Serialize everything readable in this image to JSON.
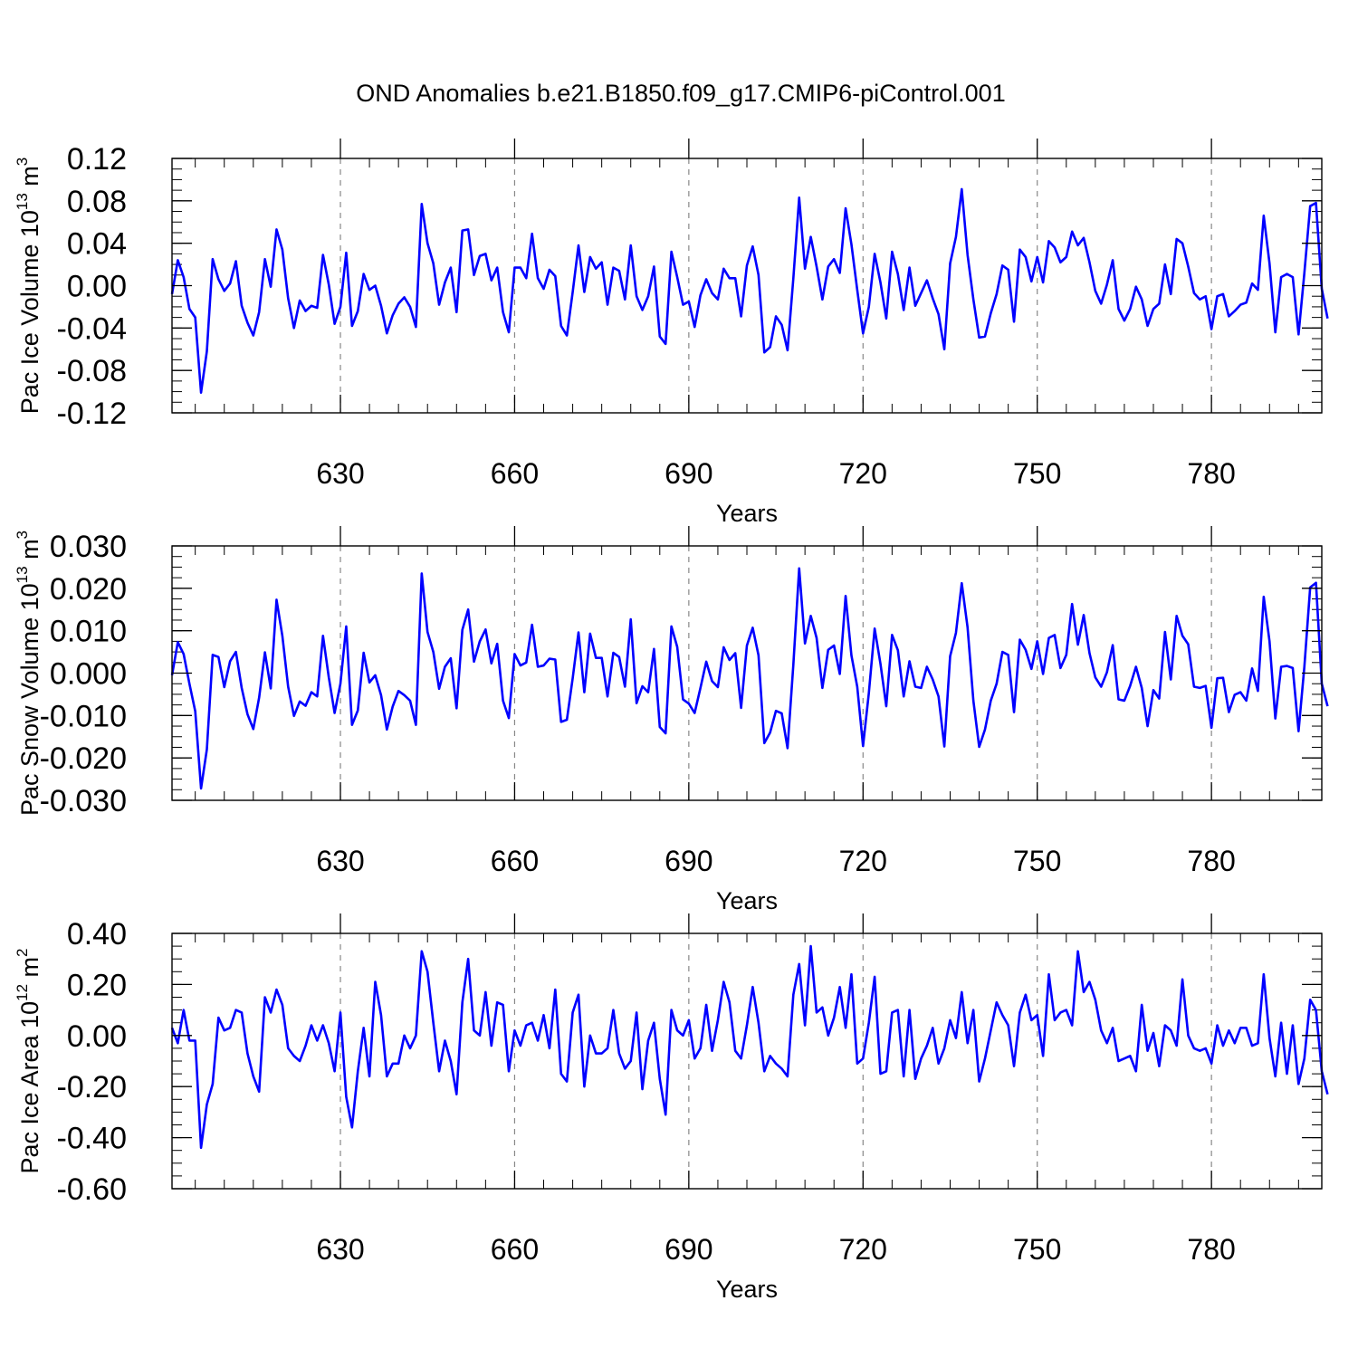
{
  "title": "OND Anomalies b.e21.B1850.f09_g17.CMIP6-piControl.001",
  "line_color": "#0000ff",
  "chart_data": [
    {
      "type": "line",
      "xlabel": "Years",
      "ylabel_main": "Pac Ice Volume 10",
      "ylabel_exp": "13",
      "ylabel_unit": " m",
      "ylabel_unit_exp": "3",
      "xlim": [
        601,
        799
      ],
      "ylim": [
        -0.12,
        0.12
      ],
      "xticks": [
        630,
        660,
        690,
        720,
        750,
        780
      ],
      "xtick_labels": [
        "630",
        "660",
        "690",
        "720",
        "750",
        "780"
      ],
      "yticks": [
        -0.12,
        -0.08,
        -0.04,
        0.0,
        0.04,
        0.08,
        0.12
      ],
      "ytick_labels": [
        "-0.12",
        "-0.08",
        "-0.04",
        "0.00",
        "0.04",
        "0.08",
        "0.12"
      ],
      "yminor_step": 0.01,
      "x_start": 601,
      "values": [
        -0.008,
        0.024,
        0.008,
        -0.022,
        -0.03,
        -0.101,
        -0.062,
        0.025,
        0.006,
        -0.005,
        0.002,
        0.023,
        -0.019,
        -0.035,
        -0.047,
        -0.025,
        0.025,
        -0.001,
        0.053,
        0.034,
        -0.012,
        -0.04,
        -0.014,
        -0.024,
        -0.019,
        -0.021,
        0.029,
        0.001,
        -0.036,
        -0.02,
        0.031,
        -0.038,
        -0.024,
        0.011,
        -0.004,
        0.0,
        -0.019,
        -0.045,
        -0.028,
        -0.017,
        -0.011,
        -0.02,
        -0.039,
        0.077,
        0.04,
        0.021,
        -0.018,
        0.003,
        0.017,
        -0.025,
        0.052,
        0.053,
        0.01,
        0.028,
        0.03,
        0.005,
        0.017,
        -0.025,
        -0.044,
        0.017,
        0.017,
        0.007,
        0.049,
        0.007,
        -0.003,
        0.015,
        0.009,
        -0.038,
        -0.047,
        -0.006,
        0.038,
        -0.006,
        0.027,
        0.016,
        0.022,
        -0.018,
        0.017,
        0.014,
        -0.013,
        0.038,
        -0.01,
        -0.023,
        -0.01,
        0.018,
        -0.048,
        -0.055,
        0.032,
        0.008,
        -0.018,
        -0.015,
        -0.039,
        -0.009,
        0.006,
        -0.007,
        -0.013,
        0.016,
        0.007,
        0.007,
        -0.029,
        0.019,
        0.037,
        0.01,
        -0.063,
        -0.058,
        -0.029,
        -0.037,
        -0.061,
        0.007,
        0.083,
        0.016,
        0.046,
        0.018,
        -0.013,
        0.018,
        0.025,
        0.012,
        0.073,
        0.039,
        -0.004,
        -0.045,
        -0.02,
        0.03,
        0.003,
        -0.031,
        0.032,
        0.011,
        -0.023,
        0.017,
        -0.019,
        -0.007,
        0.005,
        -0.012,
        -0.027,
        -0.06,
        0.021,
        0.046,
        0.091,
        0.029,
        -0.013,
        -0.049,
        -0.048,
        -0.026,
        -0.008,
        0.019,
        0.015,
        -0.034,
        0.034,
        0.027,
        0.004,
        0.027,
        0.003,
        0.042,
        0.036,
        0.022,
        0.027,
        0.051,
        0.038,
        0.045,
        0.022,
        -0.005,
        -0.017,
        0.001,
        0.024,
        -0.022,
        -0.033,
        -0.022,
        -0.001,
        -0.013,
        -0.038,
        -0.022,
        -0.017,
        0.02,
        -0.008,
        0.044,
        0.04,
        0.018,
        -0.007,
        -0.013,
        -0.01,
        -0.041,
        -0.01,
        -0.008,
        -0.029,
        -0.024,
        -0.018,
        -0.016,
        0.002,
        -0.004,
        0.066,
        0.021,
        -0.044,
        0.008,
        0.011,
        0.008,
        -0.046,
        0.012,
        0.075,
        0.078,
        -0.003,
        -0.031
      ]
    },
    {
      "type": "line",
      "xlabel": "Years",
      "ylabel_main": "Pac Snow Volume 10",
      "ylabel_exp": "13",
      "ylabel_unit": " m",
      "ylabel_unit_exp": "3",
      "xlim": [
        601,
        799
      ],
      "ylim": [
        -0.03,
        0.03
      ],
      "xticks": [
        630,
        660,
        690,
        720,
        750,
        780
      ],
      "xtick_labels": [
        "630",
        "660",
        "690",
        "720",
        "750",
        "780"
      ],
      "yticks": [
        -0.03,
        -0.02,
        -0.01,
        0.0,
        0.01,
        0.02,
        0.03
      ],
      "ytick_labels": [
        "-0.030",
        "-0.020",
        "-0.010",
        "0.000",
        "0.010",
        "0.020",
        "0.030"
      ],
      "yminor_step": 0.0025,
      "x_start": 601,
      "values": [
        -0.0005,
        0.0073,
        0.0045,
        -0.0025,
        -0.009,
        -0.0272,
        -0.018,
        0.0043,
        0.0038,
        -0.0033,
        0.0028,
        0.005,
        -0.0035,
        -0.0097,
        -0.0132,
        -0.0058,
        0.0049,
        -0.0036,
        0.0173,
        0.0088,
        -0.0032,
        -0.0101,
        -0.0067,
        -0.0077,
        -0.0045,
        -0.0055,
        0.0088,
        -0.001,
        -0.0094,
        -0.0025,
        0.011,
        -0.0122,
        -0.0088,
        0.0048,
        -0.0022,
        -0.0005,
        -0.0052,
        -0.0133,
        -0.0079,
        -0.0042,
        -0.0052,
        -0.0065,
        -0.0122,
        0.0235,
        0.0097,
        0.005,
        -0.0037,
        0.0015,
        0.0035,
        -0.0083,
        0.0102,
        0.015,
        0.0027,
        0.0075,
        0.0103,
        0.0023,
        0.0069,
        -0.0065,
        -0.0106,
        0.0045,
        0.0018,
        0.0025,
        0.0114,
        0.0015,
        0.0018,
        0.0034,
        0.0032,
        -0.0115,
        -0.011,
        -0.0012,
        0.0096,
        -0.0045,
        0.0093,
        0.0036,
        0.0036,
        -0.0055,
        0.0048,
        0.0038,
        -0.0032,
        0.0127,
        -0.0071,
        -0.0031,
        -0.0045,
        0.0057,
        -0.0127,
        -0.0142,
        0.011,
        0.0062,
        -0.0062,
        -0.0072,
        -0.0094,
        -0.0035,
        0.0027,
        -0.0019,
        -0.0033,
        0.0061,
        0.0031,
        0.0047,
        -0.0082,
        0.0065,
        0.0107,
        0.0042,
        -0.0165,
        -0.014,
        -0.0089,
        -0.0095,
        -0.0177,
        0.002,
        0.0247,
        0.007,
        0.0135,
        0.0083,
        -0.0035,
        0.0055,
        0.0065,
        -0.0002,
        0.0182,
        0.0042,
        -0.0032,
        -0.0172,
        -0.0047,
        0.0105,
        0.0022,
        -0.0078,
        0.009,
        0.0054,
        -0.0055,
        0.0028,
        -0.0032,
        -0.0035,
        0.0015,
        -0.0015,
        -0.0055,
        -0.0173,
        0.004,
        0.0095,
        0.0212,
        0.0108,
        -0.0065,
        -0.0174,
        -0.0133,
        -0.0065,
        -0.0025,
        0.005,
        0.0043,
        -0.0092,
        0.0079,
        0.0055,
        0.001,
        0.0075,
        -0.0002,
        0.0083,
        0.009,
        0.0012,
        0.0043,
        0.0163,
        0.0067,
        0.0137,
        0.0047,
        -0.001,
        -0.0032,
        0.0002,
        0.0066,
        -0.0062,
        -0.0065,
        -0.003,
        0.0015,
        -0.0035,
        -0.0125,
        -0.004,
        -0.006,
        0.0097,
        -0.0015,
        0.0135,
        0.0088,
        0.0068,
        -0.0032,
        -0.0035,
        -0.003,
        -0.0129,
        -0.0012,
        -0.0011,
        -0.0092,
        -0.0051,
        -0.0045,
        -0.0065,
        0.0011,
        -0.0042,
        0.018,
        0.0075,
        -0.0107,
        0.0015,
        0.0017,
        0.0012,
        -0.0137,
        0.0015,
        0.0202,
        0.0213,
        -0.0025,
        -0.0078
      ]
    },
    {
      "type": "line",
      "xlabel": "Years",
      "ylabel_main": "Pac Ice Area 10",
      "ylabel_exp": "12",
      "ylabel_unit": " m",
      "ylabel_unit_exp": "2",
      "xlim": [
        601,
        799
      ],
      "ylim": [
        -0.6,
        0.4
      ],
      "xticks": [
        630,
        660,
        690,
        720,
        750,
        780
      ],
      "xtick_labels": [
        "630",
        "660",
        "690",
        "720",
        "750",
        "780"
      ],
      "yticks": [
        -0.6,
        -0.4,
        -0.2,
        0.0,
        0.2,
        0.4
      ],
      "ytick_labels": [
        "-0.60",
        "-0.40",
        "-0.20",
        "0.00",
        "0.20",
        "0.40"
      ],
      "yminor_step": 0.05,
      "x_start": 601,
      "values": [
        0.03,
        -0.03,
        0.1,
        -0.02,
        -0.02,
        -0.44,
        -0.27,
        -0.19,
        0.07,
        0.02,
        0.03,
        0.1,
        0.09,
        -0.07,
        -0.16,
        -0.22,
        0.15,
        0.09,
        0.18,
        0.12,
        -0.05,
        -0.08,
        -0.1,
        -0.04,
        0.04,
        -0.02,
        0.04,
        -0.03,
        -0.14,
        0.09,
        -0.24,
        -0.36,
        -0.14,
        0.03,
        -0.16,
        0.21,
        0.08,
        -0.16,
        -0.11,
        -0.11,
        0.0,
        -0.05,
        0.0,
        0.33,
        0.25,
        0.05,
        -0.14,
        -0.02,
        -0.1,
        -0.23,
        0.13,
        0.3,
        0.02,
        0.0,
        0.17,
        -0.04,
        0.13,
        0.12,
        -0.14,
        0.02,
        -0.04,
        0.04,
        0.05,
        -0.02,
        0.08,
        -0.05,
        0.18,
        -0.15,
        -0.18,
        0.09,
        0.16,
        -0.2,
        0.0,
        -0.07,
        -0.07,
        -0.05,
        0.1,
        -0.07,
        -0.13,
        -0.1,
        0.09,
        -0.21,
        -0.02,
        0.05,
        -0.17,
        -0.31,
        0.1,
        0.02,
        0.0,
        0.06,
        -0.09,
        -0.05,
        0.12,
        -0.06,
        0.06,
        0.21,
        0.13,
        -0.06,
        -0.09,
        0.04,
        0.19,
        0.05,
        -0.14,
        -0.08,
        -0.11,
        -0.13,
        -0.16,
        0.16,
        0.28,
        0.04,
        0.35,
        0.09,
        0.11,
        0.0,
        0.07,
        0.19,
        0.03,
        0.24,
        -0.11,
        -0.09,
        0.05,
        0.23,
        -0.15,
        -0.14,
        0.09,
        0.1,
        -0.16,
        0.1,
        -0.17,
        -0.09,
        -0.04,
        0.03,
        -0.11,
        -0.05,
        0.06,
        -0.01,
        0.17,
        -0.03,
        0.1,
        -0.18,
        -0.09,
        0.02,
        0.13,
        0.08,
        0.04,
        -0.12,
        0.09,
        0.16,
        0.06,
        0.08,
        -0.08,
        0.24,
        0.06,
        0.09,
        0.1,
        0.04,
        0.33,
        0.17,
        0.21,
        0.14,
        0.02,
        -0.03,
        0.03,
        -0.1,
        -0.09,
        -0.08,
        -0.14,
        0.12,
        -0.06,
        0.01,
        -0.12,
        0.04,
        0.02,
        -0.04,
        0.22,
        0.0,
        -0.05,
        -0.06,
        -0.05,
        -0.11,
        0.04,
        -0.04,
        0.02,
        -0.03,
        0.03,
        0.03,
        -0.04,
        -0.03,
        0.24,
        -0.01,
        -0.16,
        0.05,
        -0.15,
        0.04,
        -0.19,
        -0.09,
        0.14,
        0.1,
        -0.14,
        -0.23
      ]
    }
  ]
}
